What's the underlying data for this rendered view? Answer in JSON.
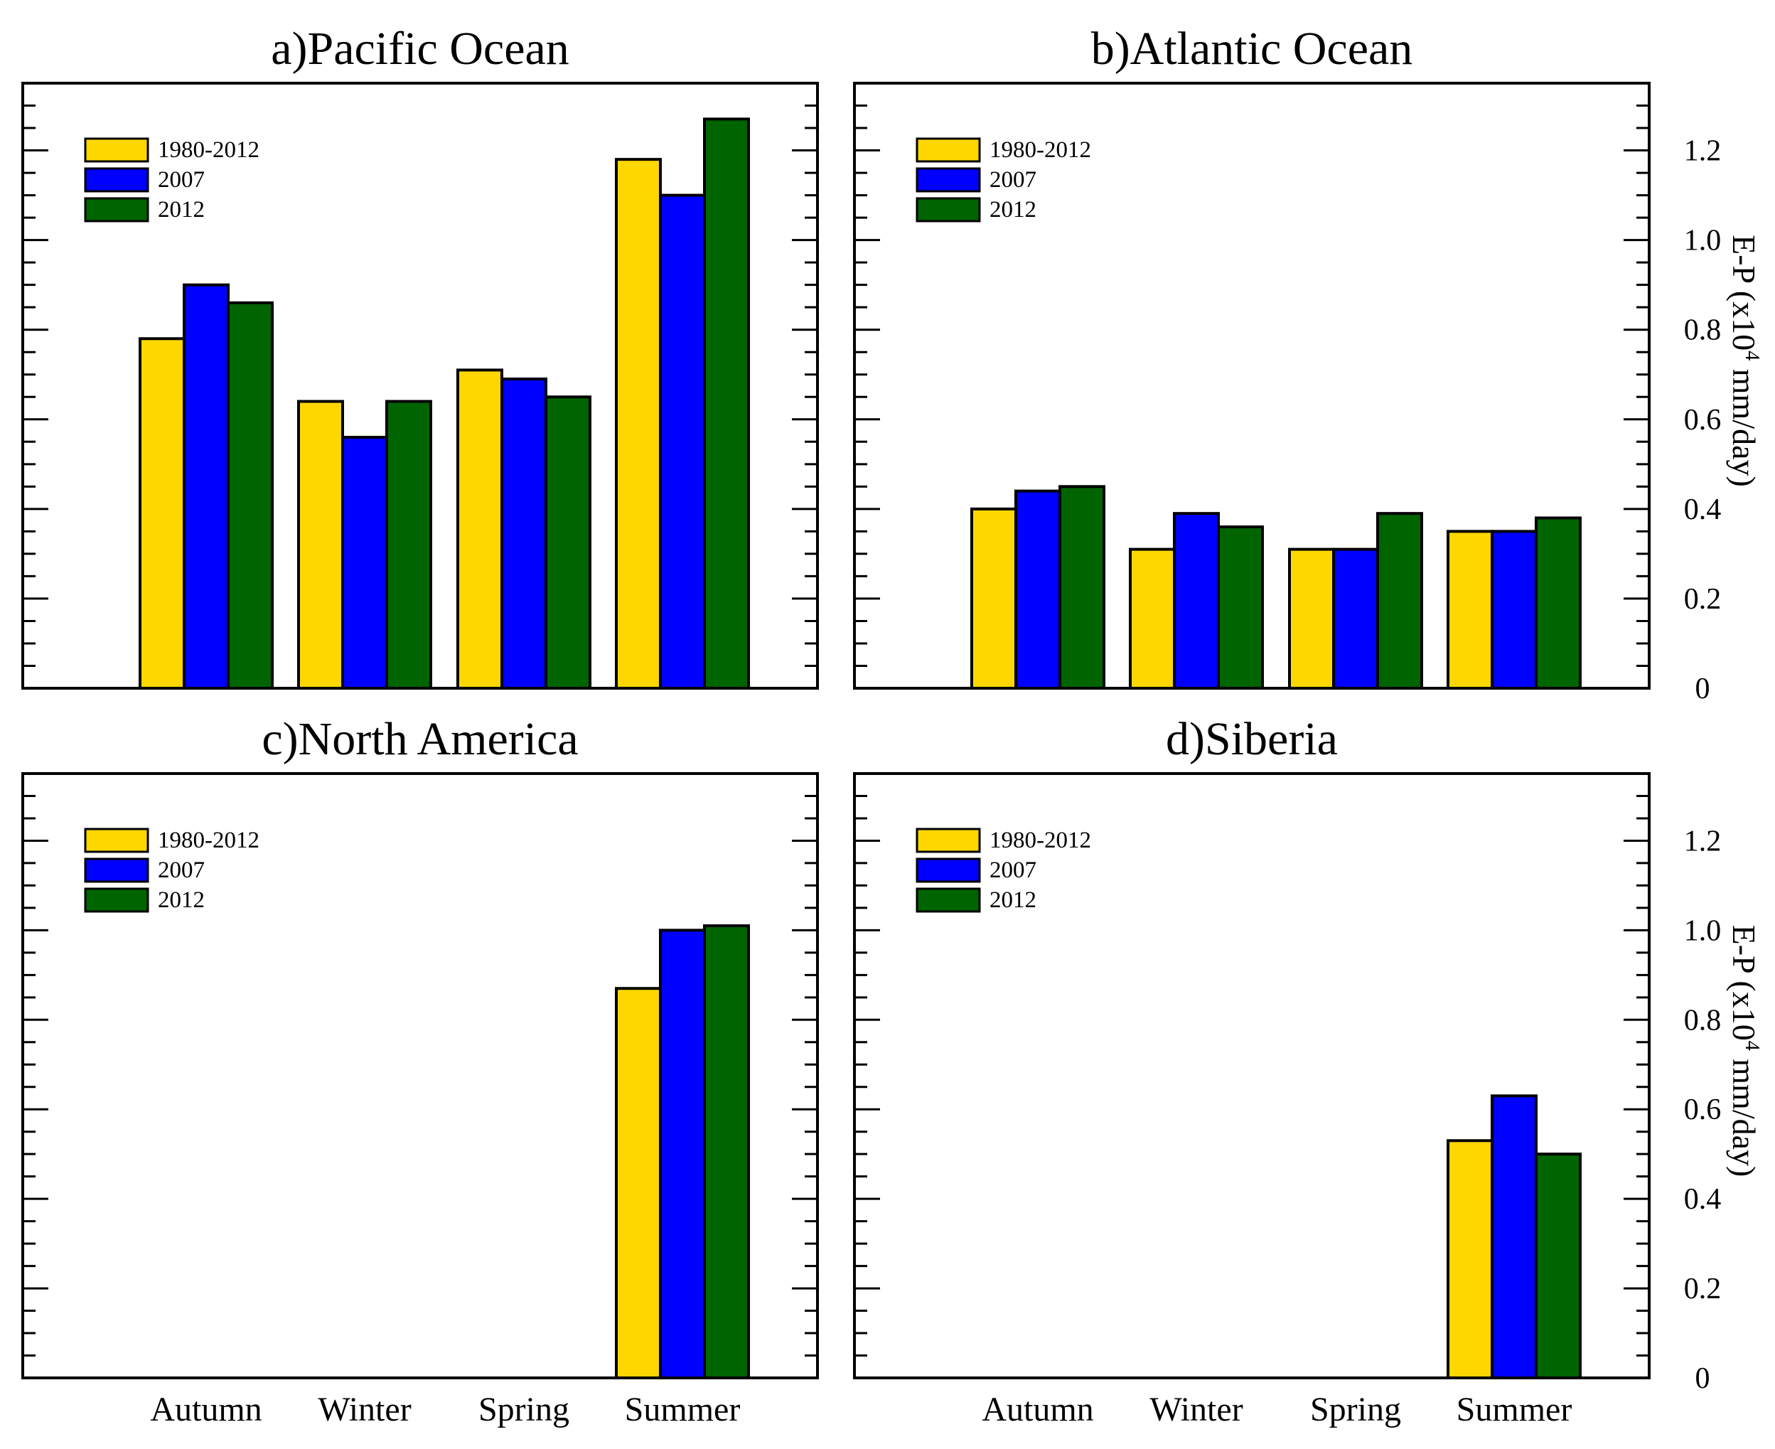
{
  "figure": {
    "y_axis_title_main": "E-P (x10",
    "y_axis_title_exp": "4",
    "y_axis_title_unit": " mm/day)"
  },
  "colors": {
    "1980-2012": "#ffd700",
    "2007": "#0000ff",
    "2012": "#006400"
  },
  "chart_data": [
    {
      "type": "bar",
      "title": "a)Pacific Ocean",
      "categories": [
        "Autumn",
        "Winter",
        "Spring",
        "Summer"
      ],
      "series": [
        {
          "name": "1980-2012",
          "values": [
            0.78,
            0.64,
            0.71,
            1.18
          ]
        },
        {
          "name": "2007",
          "values": [
            0.9,
            0.56,
            0.69,
            1.1
          ]
        },
        {
          "name": "2012",
          "values": [
            0.86,
            0.64,
            0.65,
            1.27
          ]
        }
      ],
      "ylim": [
        0,
        1.35
      ],
      "yticks": [
        0,
        0.2,
        0.4,
        0.6,
        0.8,
        1.0,
        1.2
      ],
      "show_ytick_labels": false,
      "show_ylabel": false,
      "show_xtick_labels": false,
      "legend": "top-left"
    },
    {
      "type": "bar",
      "title": "b)Atlantic Ocean",
      "categories": [
        "Autumn",
        "Winter",
        "Spring",
        "Summer"
      ],
      "series": [
        {
          "name": "1980-2012",
          "values": [
            0.4,
            0.31,
            0.31,
            0.35
          ]
        },
        {
          "name": "2007",
          "values": [
            0.44,
            0.39,
            0.31,
            0.35
          ]
        },
        {
          "name": "2012",
          "values": [
            0.45,
            0.36,
            0.39,
            0.38
          ]
        }
      ],
      "ylim": [
        0,
        1.35
      ],
      "yticks": [
        0,
        0.2,
        0.4,
        0.6,
        0.8,
        1.0,
        1.2
      ],
      "ytick_labels": [
        "0",
        "0.2",
        "0.4",
        "0.6",
        "0.8",
        "1.0",
        "1.2"
      ],
      "show_ytick_labels": true,
      "show_ylabel": true,
      "show_xtick_labels": false,
      "legend": "top-left"
    },
    {
      "type": "bar",
      "title": "c)North America",
      "categories": [
        "Autumn",
        "Winter",
        "Spring",
        "Summer"
      ],
      "series": [
        {
          "name": "1980-2012",
          "values": [
            0,
            0,
            0,
            0.87
          ]
        },
        {
          "name": "2007",
          "values": [
            0,
            0,
            0,
            1.0
          ]
        },
        {
          "name": "2012",
          "values": [
            0,
            0,
            0,
            1.01
          ]
        }
      ],
      "ylim": [
        0,
        1.35
      ],
      "yticks": [
        0,
        0.2,
        0.4,
        0.6,
        0.8,
        1.0,
        1.2
      ],
      "show_ytick_labels": false,
      "show_ylabel": false,
      "show_xtick_labels": true,
      "legend": "top-left"
    },
    {
      "type": "bar",
      "title": "d)Siberia",
      "categories": [
        "Autumn",
        "Winter",
        "Spring",
        "Summer"
      ],
      "series": [
        {
          "name": "1980-2012",
          "values": [
            0,
            0,
            0,
            0.53
          ]
        },
        {
          "name": "2007",
          "values": [
            0,
            0,
            0,
            0.63
          ]
        },
        {
          "name": "2012",
          "values": [
            0,
            0,
            0,
            0.5
          ]
        }
      ],
      "ylim": [
        0,
        1.35
      ],
      "yticks": [
        0,
        0.2,
        0.4,
        0.6,
        0.8,
        1.0,
        1.2
      ],
      "ytick_labels": [
        "0",
        "0.2",
        "0.4",
        "0.6",
        "0.8",
        "1.0",
        "1.2"
      ],
      "show_ytick_labels": true,
      "show_ylabel": true,
      "show_xtick_labels": true,
      "legend": "top-left"
    }
  ]
}
